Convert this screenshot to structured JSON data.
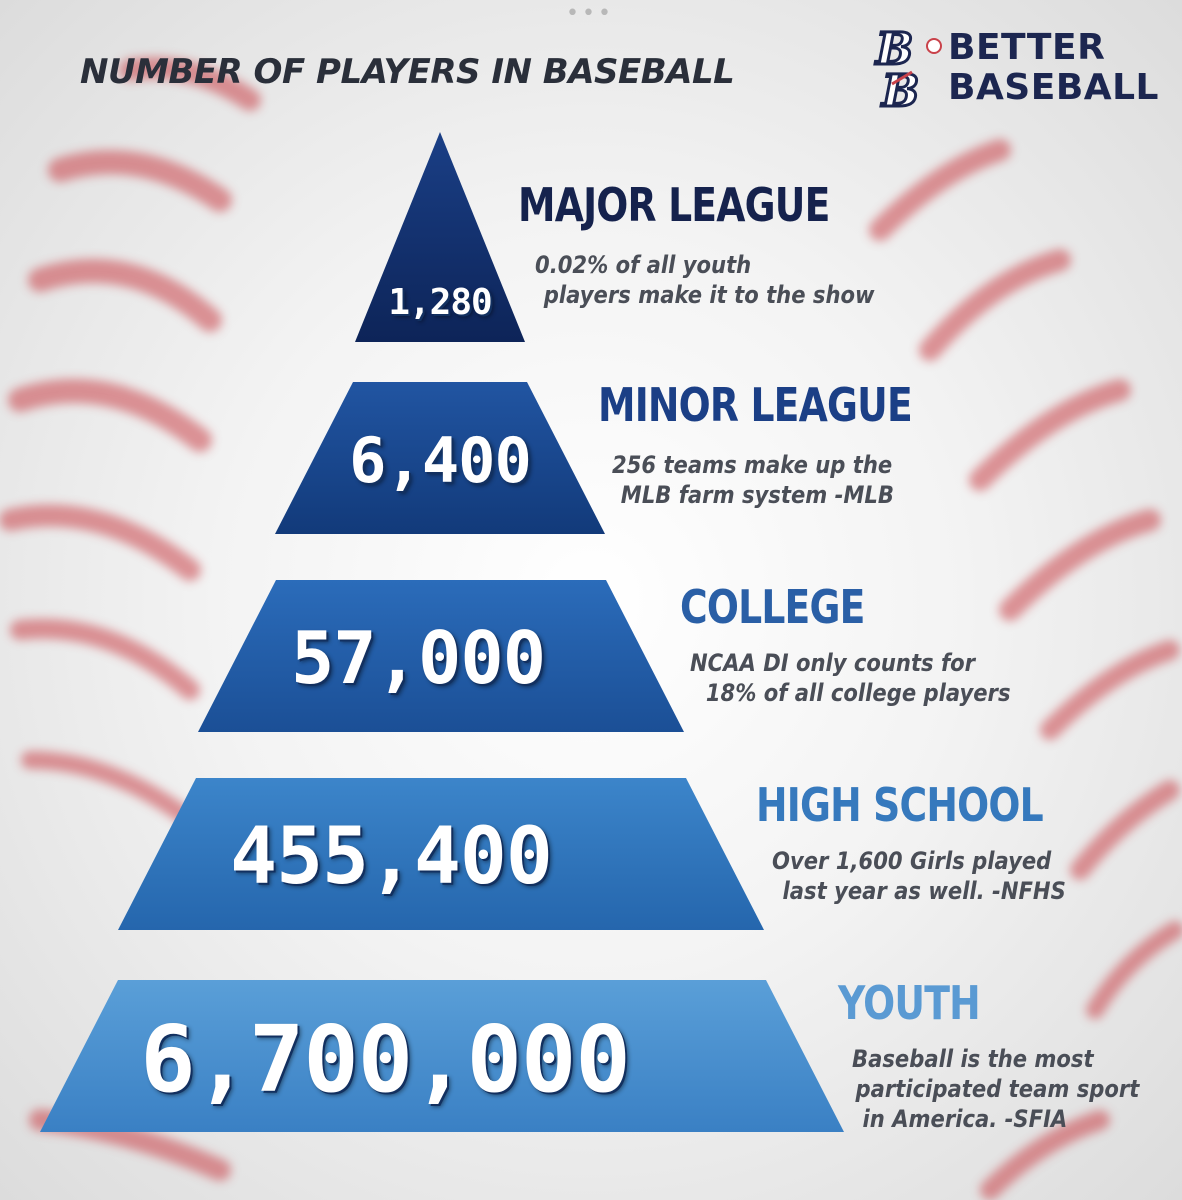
{
  "header": {
    "menu_dots": "•••",
    "title": "NUMBER OF PLAYERS IN BASEBALL",
    "logo": {
      "line1": "BETTER",
      "line2": "BASEBALL",
      "monogram": "BB"
    }
  },
  "colors": {
    "navy": "#0f2a63",
    "mid_blue": "#1c5aa8",
    "light_blue": "#4e93cf",
    "seam_red": "#c9424a",
    "title_dark": "#2a2f3a"
  },
  "tiers": [
    {
      "count": "1,280",
      "heading": "MAJOR LEAGUE",
      "heading_color": "#15224d",
      "desc": [
        "0.02% of all youth",
        "players make it to the show"
      ]
    },
    {
      "count": "6,400",
      "heading": "MINOR LEAGUE",
      "heading_color": "#1b3f86",
      "desc": [
        "256 teams make up the",
        "MLB farm system -MLB"
      ]
    },
    {
      "count": "57,000",
      "heading": "COLLEGE",
      "heading_color": "#2a5fa6",
      "desc": [
        "NCAA DI only counts for",
        "18% of all college players"
      ]
    },
    {
      "count": "455,400",
      "heading": "HIGH SCHOOL",
      "heading_color": "#3679bd",
      "desc": [
        "Over 1,600 Girls played",
        "last year as well. -NFHS"
      ]
    },
    {
      "count": "6,700,000",
      "heading": "YOUTH",
      "heading_color": "#5a9ad3",
      "desc": [
        "Baseball is the most",
        "participated  team sport",
        "in America. -SFIA"
      ]
    }
  ]
}
